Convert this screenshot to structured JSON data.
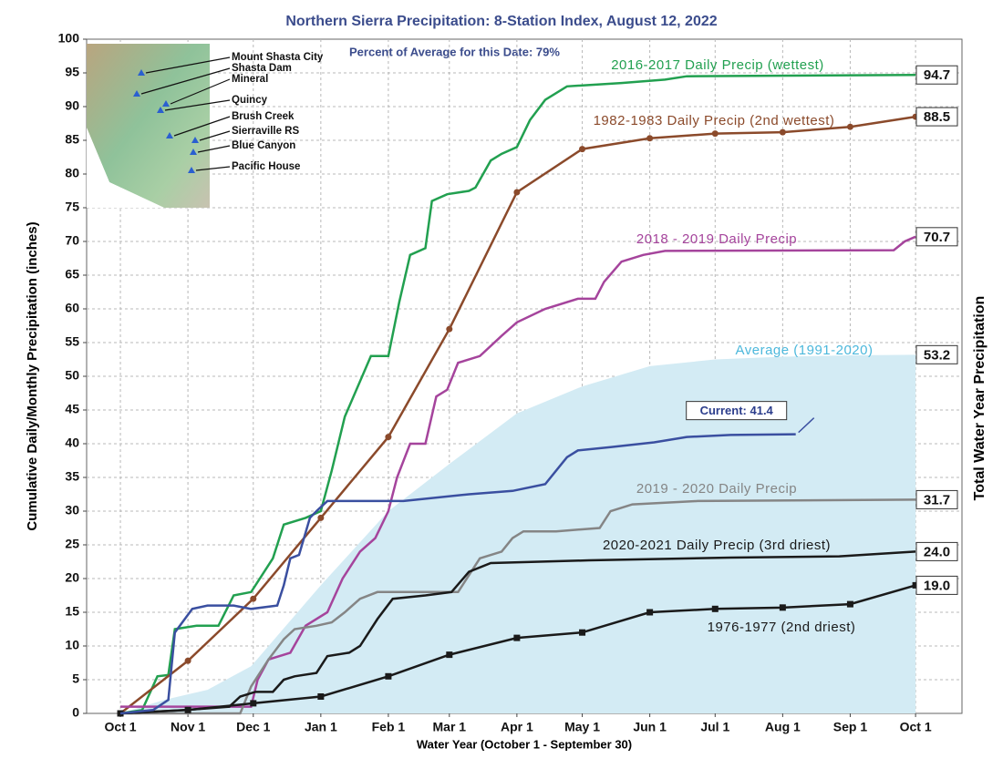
{
  "chart_data": {
    "type": "line",
    "title": "Northern Sierra Precipitation: 8-Station Index, August 12, 2022",
    "subtitle": "Percent of Average for this Date: 79%",
    "y_label": "Cumulative Daily/Monthly Precipitation (inches)",
    "y2_label": "Total Water Year Precipitation",
    "x_label": "Water Year (October 1 - September 30)",
    "xlim": [
      -15.5,
      386.3
    ],
    "xticks": [
      {
        "value": 0,
        "label": "Oct 1"
      },
      {
        "value": 31,
        "label": "Nov 1"
      },
      {
        "value": 61,
        "label": "Dec 1"
      },
      {
        "value": 92,
        "label": "Jan 1"
      },
      {
        "value": 123,
        "label": "Feb 1"
      },
      {
        "value": 151,
        "label": "Mar 1"
      },
      {
        "value": 182,
        "label": "Apr 1"
      },
      {
        "value": 212,
        "label": "May 1"
      },
      {
        "value": 243,
        "label": "Jun 1"
      },
      {
        "value": 273,
        "label": "Jul 1"
      },
      {
        "value": 304,
        "label": "Aug 1"
      },
      {
        "value": 335,
        "label": "Sep 1"
      },
      {
        "value": 365,
        "label": "Oct 1"
      }
    ],
    "ylim": [
      0,
      100
    ],
    "yticks": [
      0,
      5,
      10,
      15,
      20,
      25,
      30,
      35,
      40,
      45,
      50,
      55,
      60,
      65,
      70,
      75,
      80,
      85,
      90,
      95,
      100
    ],
    "grid": true,
    "series": [
      {
        "name": "Average (1991-2020)",
        "color": "#4cb8dc",
        "fill": "#d3ebf4",
        "style": "area",
        "x": [
          0,
          20,
          40,
          60,
          92,
          123,
          151,
          182,
          212,
          243,
          273,
          304,
          335,
          365
        ],
        "values": [
          0,
          2,
          3.5,
          7,
          19,
          30,
          37,
          44.5,
          48.5,
          51.5,
          52.5,
          52.9,
          53.1,
          53.2
        ],
        "value_labels": [
          null,
          null,
          null,
          null,
          null,
          null,
          null,
          null,
          null,
          null,
          null,
          null,
          null,
          "53.2"
        ]
      },
      {
        "name": "2016-2017 Daily Precip (wettest)",
        "color": "#22a050",
        "style": "line",
        "x": [
          0,
          10,
          17,
          22,
          25,
          35,
          45,
          52,
          60,
          70,
          75,
          85,
          92,
          97,
          103,
          115,
          123,
          128,
          133,
          140,
          143,
          150,
          160,
          163,
          170,
          175,
          182,
          188,
          195,
          205,
          230,
          250,
          260,
          365
        ],
        "values": [
          0,
          0.5,
          5.5,
          5.7,
          12.5,
          13,
          13,
          17.5,
          18,
          23,
          28,
          29,
          30,
          36,
          44,
          53,
          53,
          61,
          68,
          69,
          76,
          77,
          77.5,
          78,
          82,
          83,
          84,
          88,
          91,
          93,
          93.5,
          94,
          94.5,
          94.7
        ],
        "value_labels": [
          null,
          null,
          null,
          null,
          null,
          null,
          null,
          null,
          null,
          null,
          null,
          null,
          null,
          null,
          null,
          null,
          null,
          null,
          null,
          null,
          null,
          null,
          null,
          null,
          null,
          null,
          null,
          null,
          null,
          null,
          null,
          null,
          null,
          "94.7"
        ]
      },
      {
        "name": "1982-1983 Daily Precip (2nd wettest)",
        "color": "#8b4a2b",
        "style": "line",
        "markers": "circle",
        "x": [
          0,
          31,
          61,
          92,
          123,
          151,
          182,
          212,
          243,
          273,
          304,
          335,
          365
        ],
        "values": [
          0,
          7.8,
          17,
          29,
          41,
          57,
          77.3,
          83.7,
          85.3,
          86,
          86.2,
          87,
          88.5
        ],
        "value_labels": [
          null,
          null,
          null,
          null,
          null,
          null,
          null,
          null,
          null,
          null,
          null,
          null,
          "88.5"
        ]
      },
      {
        "name": "2018 - 2019 Daily Precip",
        "color": "#a5449c",
        "style": "line",
        "x": [
          0,
          60,
          63,
          68,
          78,
          85,
          95,
          102,
          110,
          117,
          123,
          127,
          133,
          140,
          145,
          150,
          155,
          165,
          175,
          182,
          195,
          210,
          218,
          222,
          230,
          240,
          250,
          355,
          360,
          365
        ],
        "values": [
          1,
          1,
          5,
          8,
          9,
          13,
          15,
          20,
          24,
          26,
          30,
          35,
          40,
          40,
          47,
          48,
          52,
          53,
          56,
          58,
          60,
          61.5,
          61.5,
          64,
          67,
          68,
          68.6,
          68.7,
          70,
          70.7
        ],
        "value_labels": [
          null,
          null,
          null,
          null,
          null,
          null,
          null,
          null,
          null,
          null,
          null,
          null,
          null,
          null,
          null,
          null,
          null,
          null,
          null,
          null,
          null,
          null,
          null,
          null,
          null,
          null,
          null,
          null,
          null,
          "70.7"
        ]
      },
      {
        "name": "2019 - 2020 Daily Precip",
        "color": "#858585",
        "style": "line",
        "x": [
          0,
          55,
          60,
          68,
          75,
          80,
          90,
          97,
          103,
          110,
          118,
          155,
          165,
          175,
          180,
          185,
          200,
          220,
          225,
          235,
          265,
          365
        ],
        "values": [
          0,
          0,
          4,
          8,
          11,
          12.5,
          13,
          13.5,
          15,
          17,
          18,
          18,
          23,
          24,
          26,
          27,
          27,
          27.5,
          30,
          31,
          31.5,
          31.7
        ],
        "value_labels": [
          null,
          null,
          null,
          null,
          null,
          null,
          null,
          null,
          null,
          null,
          null,
          null,
          null,
          null,
          null,
          null,
          null,
          null,
          null,
          null,
          null,
          "31.7"
        ]
      },
      {
        "name": "2020-2021 Daily Precip (3rd driest)",
        "color": "#1a1a1a",
        "style": "line",
        "x": [
          0,
          30,
          50,
          55,
          62,
          70,
          75,
          80,
          90,
          95,
          105,
          110,
          118,
          125,
          140,
          152,
          160,
          170,
          215,
          280,
          330,
          365
        ],
        "values": [
          0,
          0.5,
          1,
          2.5,
          3.2,
          3.2,
          5,
          5.5,
          6,
          8.5,
          9,
          10,
          14,
          17,
          17.5,
          18,
          21,
          22.3,
          22.7,
          23.1,
          23.3,
          24
        ],
        "value_labels": [
          null,
          null,
          null,
          null,
          null,
          null,
          null,
          null,
          null,
          null,
          null,
          null,
          null,
          null,
          null,
          null,
          null,
          null,
          null,
          null,
          null,
          "24.0"
        ]
      },
      {
        "name": "1976-1977 (2nd driest)",
        "color": "#1a1a1a",
        "style": "line",
        "markers": "square",
        "x": [
          0,
          31,
          61,
          92,
          123,
          151,
          182,
          212,
          243,
          273,
          304,
          335,
          365
        ],
        "values": [
          0,
          0.5,
          1.5,
          2.5,
          5.5,
          8.7,
          11.2,
          12,
          15,
          15.5,
          15.7,
          16.2,
          19
        ],
        "value_labels": [
          null,
          null,
          null,
          null,
          null,
          null,
          null,
          null,
          null,
          null,
          null,
          null,
          "19.0"
        ]
      },
      {
        "name": "Current",
        "color": "#3a4fa0",
        "style": "line",
        "x": [
          0,
          15,
          22,
          25,
          33,
          40,
          52,
          60,
          72,
          75,
          78,
          82,
          87,
          90,
          95,
          130,
          160,
          180,
          195,
          205,
          210,
          225,
          245,
          260,
          280,
          310
        ],
        "values": [
          0,
          0.5,
          2,
          12,
          15.5,
          16,
          16,
          15.5,
          16,
          19,
          23,
          23.5,
          29,
          30,
          31.5,
          31.5,
          32.5,
          33,
          34,
          38,
          39,
          39.5,
          40.2,
          41,
          41.3,
          41.4
        ],
        "value_labels": [
          null,
          null,
          null,
          null,
          null,
          null,
          null,
          null,
          null,
          null,
          null,
          null,
          null,
          null,
          null,
          null,
          null,
          null,
          null,
          null,
          null,
          null,
          null,
          null,
          null,
          "Current: 41.4"
        ]
      }
    ],
    "map_labels": [
      "Mount Shasta City",
      "Shasta Dam",
      "Mineral",
      "Quincy",
      "Brush Creek",
      "Sierraville RS",
      "Blue Canyon",
      "Pacific House"
    ]
  }
}
